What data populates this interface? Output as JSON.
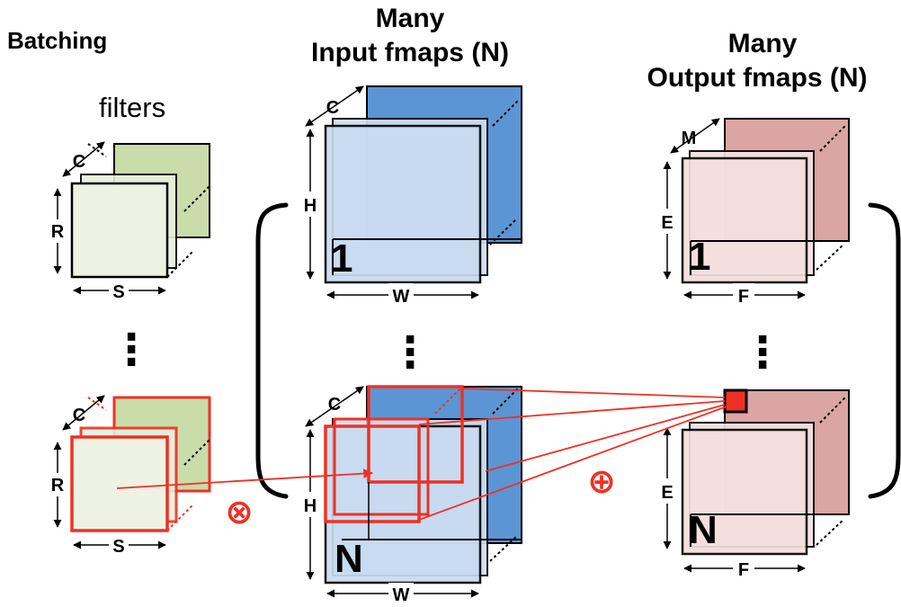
{
  "title_batching": "Batching",
  "filters": {
    "label": "filters",
    "dims": {
      "channels": "C",
      "height": "R",
      "width": "S"
    },
    "ellipsis": "⋮"
  },
  "input_fmaps": {
    "title_line1": "Many",
    "title_line2": "Input fmaps (N)",
    "dims": {
      "channels": "C",
      "height": "H",
      "width": "W"
    },
    "first_index": "1",
    "last_index": "N",
    "ellipsis": "⋮"
  },
  "output_fmaps": {
    "title_line1": "Many",
    "title_line2": "Output fmaps (N)",
    "dims": {
      "channels": "M",
      "height": "E",
      "width": "F"
    },
    "first_index": "1",
    "last_index": "N",
    "ellipsis": "⋮"
  },
  "operators": {
    "multiply": "⊗",
    "accumulate": "⊕"
  },
  "colors": {
    "filter_front": "#eef2e2",
    "filter_back": "#c9dcaa",
    "input_front": "#c8dbf0",
    "input_back": "#5b95d4",
    "output_front": "#f5dede",
    "output_back": "#dba5a4",
    "highlight": "#ee3124",
    "outline": "#000000"
  }
}
